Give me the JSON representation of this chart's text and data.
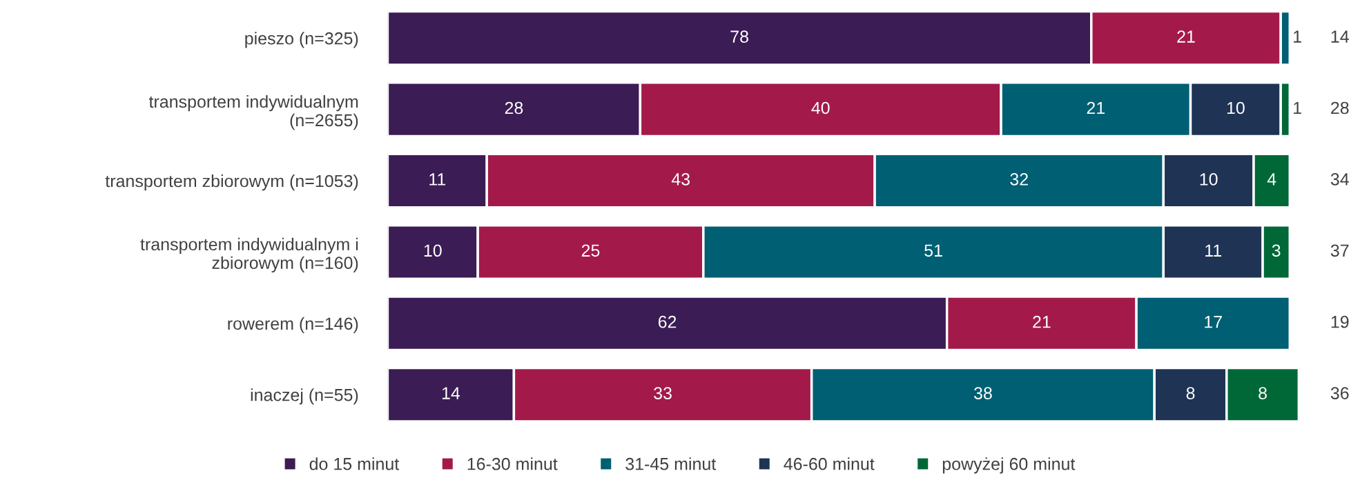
{
  "chart_data": {
    "type": "bar",
    "orientation": "horizontal",
    "stacked": true,
    "data_labels": true,
    "legend": "bottom",
    "grid": false,
    "xlim": [
      0,
      101
    ],
    "categories": [
      "pieszo (n=325)",
      "transportem indywidualnym\n(n=2655)",
      "transportem zbiorowym (n=1053)",
      "transportem indywidualnym i\nzbiorowym (n=160)",
      "rowerem (n=146)",
      "inaczej (n=55)"
    ],
    "series": [
      {
        "name": "do 15 minut",
        "color": "#3b1c54",
        "values": [
          78,
          28,
          11,
          10,
          62,
          14
        ]
      },
      {
        "name": "16-30 minut",
        "color": "#a31a4a",
        "values": [
          21,
          40,
          43,
          25,
          21,
          33
        ]
      },
      {
        "name": "31-45 minut",
        "color": "#005f73",
        "values": [
          1,
          21,
          32,
          51,
          17,
          38
        ]
      },
      {
        "name": "46-60 minut",
        "color": "#1f3354",
        "values": [
          null,
          10,
          10,
          11,
          null,
          8
        ]
      },
      {
        "name": "powyżej 60 minut",
        "color": "#006837",
        "values": [
          null,
          1,
          4,
          3,
          null,
          8
        ]
      }
    ],
    "annotations": [
      "14",
      "28",
      "34",
      "37",
      "19",
      "36"
    ]
  }
}
